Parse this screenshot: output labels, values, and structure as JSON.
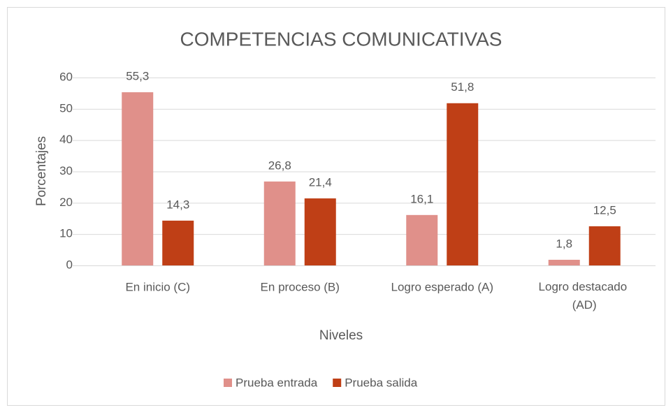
{
  "chart_data": {
    "type": "bar",
    "title": "COMPETENCIAS COMUNICATIVAS",
    "x_label": "Niveles",
    "y_label": "Porcentajes",
    "categories": [
      "En inicio (C)",
      "En proceso (B)",
      "Logro esperado (A)",
      "Logro destacado (AD)"
    ],
    "series": [
      {
        "name": "Prueba entrada",
        "color": "#e0908a",
        "values": [
          55.3,
          26.8,
          16.1,
          1.8
        ],
        "value_labels": [
          "55,3",
          "26,8",
          "16,1",
          "1,8"
        ]
      },
      {
        "name": "Prueba salida",
        "color": "#bf3f16",
        "values": [
          14.3,
          21.4,
          51.8,
          12.5
        ],
        "value_labels": [
          "14,3",
          "21,4",
          "51,8",
          "12,5"
        ]
      }
    ],
    "ylim": [
      0,
      60
    ],
    "yticks": [
      0,
      10,
      20,
      30,
      40,
      50,
      60
    ],
    "grid": true,
    "legend": "bottom"
  }
}
